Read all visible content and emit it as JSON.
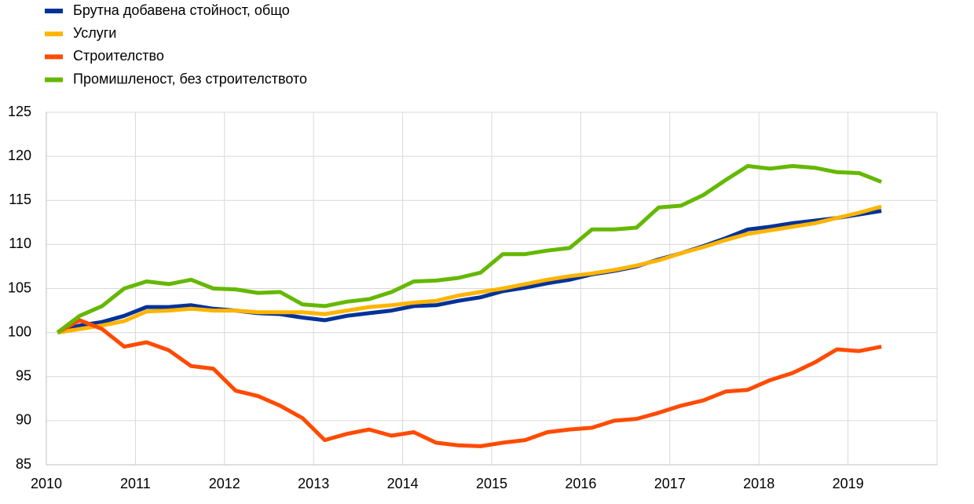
{
  "chart_data": {
    "type": "line",
    "x": [
      2010.125,
      2010.375,
      2010.625,
      2010.875,
      2011.125,
      2011.375,
      2011.625,
      2011.875,
      2012.125,
      2012.375,
      2012.625,
      2012.875,
      2013.125,
      2013.375,
      2013.625,
      2013.875,
      2014.125,
      2014.375,
      2014.625,
      2014.875,
      2015.125,
      2015.375,
      2015.625,
      2015.875,
      2016.125,
      2016.375,
      2016.625,
      2016.875,
      2017.125,
      2017.375,
      2017.625,
      2017.875,
      2018.125,
      2018.375,
      2018.625,
      2018.875,
      2019.125,
      2019.375
    ],
    "series": [
      {
        "name": "Брутна добавена стойност, общо",
        "color": "#003299",
        "values": [
          100,
          100.8,
          101.2,
          101.9,
          102.9,
          102.9,
          103.1,
          102.7,
          102.5,
          102.2,
          102.1,
          101.7,
          101.4,
          101.9,
          102.2,
          102.5,
          103,
          103.1,
          103.6,
          104,
          104.7,
          105.1,
          105.6,
          106,
          106.6,
          107,
          107.5,
          108.3,
          109,
          109.8,
          110.7,
          111.7,
          112,
          112.4,
          112.7,
          113,
          113.4,
          113.8
        ]
      },
      {
        "name": "Услуги",
        "color": "#ffb400",
        "values": [
          100,
          100.4,
          100.8,
          101.3,
          102.4,
          102.5,
          102.7,
          102.5,
          102.5,
          102.3,
          102.3,
          102.3,
          102.1,
          102.5,
          102.9,
          103.1,
          103.4,
          103.6,
          104.2,
          104.6,
          105,
          105.5,
          106,
          106.4,
          106.7,
          107.1,
          107.6,
          108.2,
          109,
          109.7,
          110.5,
          111.2,
          111.6,
          112,
          112.4,
          113,
          113.6,
          114.3
        ]
      },
      {
        "name": "Строителство",
        "color": "#ff4b00",
        "values": [
          100,
          101.4,
          100.4,
          98.4,
          98.9,
          98,
          96.2,
          95.9,
          93.4,
          92.8,
          91.7,
          90.3,
          87.8,
          88.5,
          89,
          88.3,
          88.7,
          87.5,
          87.2,
          87.1,
          87.5,
          87.8,
          88.7,
          89,
          89.2,
          90,
          90.2,
          90.9,
          91.7,
          92.3,
          93.3,
          93.5,
          94.6,
          95.4,
          96.6,
          98.1,
          97.9,
          98.4
        ]
      },
      {
        "name": "Промишленост, без строителството",
        "color": "#65b800",
        "values": [
          100,
          101.9,
          103,
          105,
          105.8,
          105.5,
          106,
          105,
          104.9,
          104.5,
          104.6,
          103.2,
          103,
          103.5,
          103.8,
          104.6,
          105.8,
          105.9,
          106.2,
          106.8,
          108.9,
          108.9,
          109.3,
          109.6,
          111.7,
          111.7,
          111.9,
          114.2,
          114.4,
          115.6,
          117.3,
          118.9,
          118.6,
          118.9,
          118.7,
          118.2,
          118.1,
          117.1
        ]
      }
    ],
    "xlim": [
      2010,
      2020
    ],
    "xticks": [
      2010,
      2011,
      2012,
      2013,
      2014,
      2015,
      2016,
      2017,
      2018,
      2019
    ],
    "ylim": [
      85,
      125
    ],
    "yticks": [
      85,
      90,
      95,
      100,
      105,
      110,
      115,
      120,
      125
    ],
    "grid": true
  }
}
